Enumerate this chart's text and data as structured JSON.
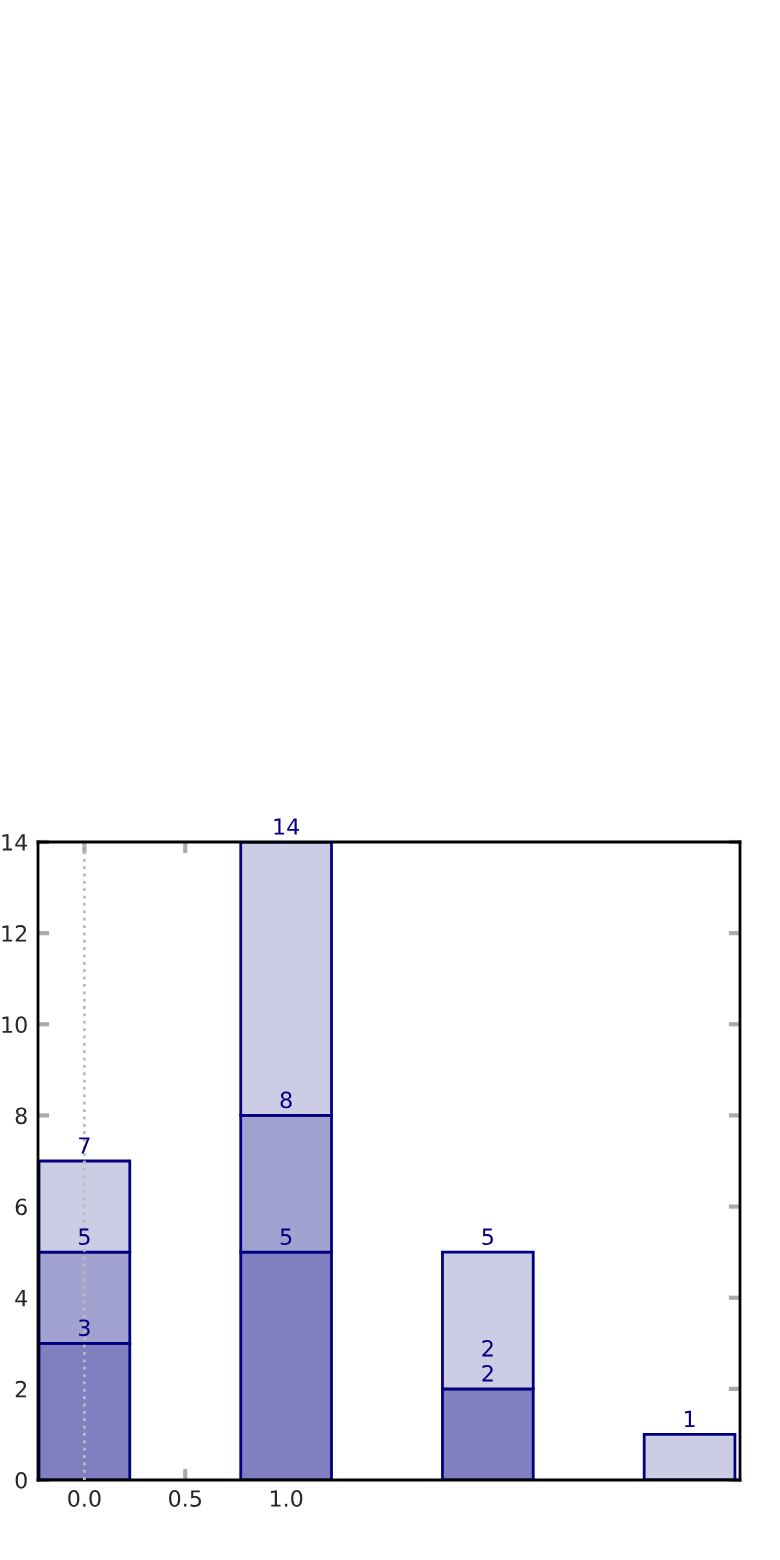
{
  "chart_data": {
    "type": "bar",
    "stacked": true,
    "x": [
      0,
      1,
      2,
      3
    ],
    "series": [
      {
        "color": "#8080c0",
        "values": [
          3,
          5,
          2,
          0
        ]
      },
      {
        "color": "#a2a2d0",
        "values": [
          2,
          3,
          0,
          0
        ]
      },
      {
        "color": "#ccccE4",
        "values": [
          2,
          6,
          3,
          1
        ]
      }
    ],
    "annotations": [
      {
        "text": "3",
        "x": 0,
        "y": 3
      },
      {
        "text": "5",
        "x": 0,
        "y": 5
      },
      {
        "text": "7",
        "x": 0,
        "y": 7
      },
      {
        "text": "5",
        "x": 1,
        "y": 5
      },
      {
        "text": "8",
        "x": 1,
        "y": 8
      },
      {
        "text": "14",
        "x": 1,
        "y": 14
      },
      {
        "text": "2",
        "x": 2,
        "y": 2
      },
      {
        "text": "2",
        "x": 2,
        "y": 2
      },
      {
        "text": "5",
        "x": 2,
        "y": 5
      },
      {
        "text": "1",
        "x": 3,
        "y": 1
      }
    ],
    "xlim": [
      -0.23,
      3.25
    ],
    "xticks": [
      {
        "value": 0,
        "label": "0.0"
      },
      {
        "value": 0.5,
        "label": "0.5"
      },
      {
        "value": 1,
        "label": "1.0"
      }
    ],
    "ylim": [
      0,
      14
    ],
    "yticks": [
      0,
      2,
      4,
      6,
      8,
      10,
      12,
      14
    ],
    "ref_lines": [
      {
        "axis": "x",
        "value": 0,
        "color": "#bbbbbb",
        "line_style": "dotted"
      }
    ],
    "grid": false,
    "legend": false
  }
}
